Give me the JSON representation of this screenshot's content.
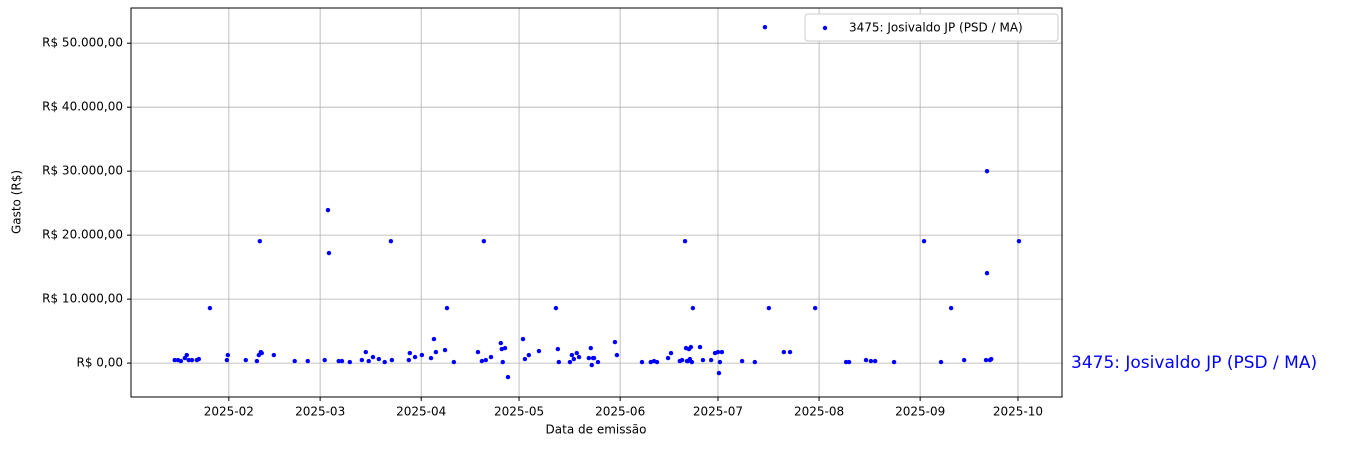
{
  "chart_data": {
    "type": "scatter",
    "xlabel": "Data de emissão",
    "ylabel": "Gasto (R$)",
    "x": [
      14.4,
      15.4,
      16.3,
      17.5,
      18.1,
      18.7,
      19.7,
      21.2,
      21.8,
      25.2,
      30.4,
      30.7,
      36.2,
      39.6,
      40.2,
      40.5,
      40.8,
      41.1,
      44.8,
      51.2,
      55.2,
      60.4,
      61.4,
      61.7,
      64.7,
      65.7,
      68.1,
      71.8,
      73.0,
      73.9,
      75.2,
      77.0,
      78.8,
      80.7,
      81.0,
      86.2,
      86.5,
      88.1,
      90.2,
      93.0,
      93.9,
      94.5,
      97.3,
      97.9,
      100.0,
      107.4,
      108.6,
      109.2,
      109.8,
      111.4,
      114.4,
      114.7,
      115.0,
      115.7,
      116.6,
      121.2,
      121.8,
      123.0,
      126.1,
      131.3,
      131.9,
      132.2,
      135.6,
      136.2,
      136.8,
      137.7,
      138.4,
      141.4,
      142.0,
      142.3,
      142.7,
      143.0,
      144.2,
      149.4,
      150.0,
      157.7,
      160.4,
      161.4,
      162.3,
      165.7,
      166.6,
      169.3,
      170.0,
      170.9,
      171.2,
      171.5,
      171.8,
      172.1,
      172.4,
      172.7,
      173.0,
      173.3,
      175.5,
      176.4,
      178.9,
      180.1,
      181.0,
      181.3,
      181.6,
      182.2,
      188.4,
      192.3,
      195.4,
      196.6,
      201.2,
      203.1,
      210.8,
      220.3,
      221.2,
      226.4,
      227.9,
      229.2,
      235.0,
      244.2,
      249.4,
      252.5,
      256.5,
      263.2,
      263.5,
      263.5,
      264.4,
      264.8,
      273.3
    ],
    "series": [
      {
        "name": "3475: Josivaldo JP (PSD / MA)",
        "color": "blue",
        "values": [
          470,
          470,
          310,
          780,
          1250,
          470,
          470,
          470,
          630,
          8590,
          470,
          1250,
          470,
          310,
          1250,
          19060,
          1720,
          1560,
          1250,
          310,
          310,
          470,
          23910,
          17190,
          310,
          310,
          160,
          470,
          1720,
          310,
          940,
          630,
          160,
          19060,
          470,
          470,
          1560,
          940,
          1250,
          780,
          3750,
          1720,
          2030,
          8590,
          160,
          1720,
          310,
          19060,
          470,
          940,
          3130,
          2190,
          160,
          2340,
          -2190,
          3750,
          630,
          1250,
          1880,
          8590,
          2190,
          160,
          160,
          1250,
          630,
          1560,
          940,
          780,
          2340,
          -310,
          780,
          780,
          160,
          3280,
          1250,
          160,
          160,
          310,
          160,
          780,
          1560,
          310,
          470,
          19060,
          2340,
          310,
          310,
          2190,
          630,
          2500,
          160,
          8590,
          2500,
          470,
          470,
          1560,
          1720,
          -1560,
          160,
          1720,
          310,
          160,
          52500,
          8590,
          1720,
          1720,
          8590,
          160,
          160,
          470,
          310,
          310,
          160,
          19060,
          160,
          8590,
          470,
          470,
          30000,
          14060,
          470,
          630,
          19060
        ]
      }
    ],
    "xlim": [
      1.0,
      286.5
    ],
    "xticks": [
      {
        "value": 31,
        "label": "2025-02"
      },
      {
        "value": 59,
        "label": "2025-03"
      },
      {
        "value": 90,
        "label": "2025-04"
      },
      {
        "value": 120,
        "label": "2025-05"
      },
      {
        "value": 151,
        "label": "2025-06"
      },
      {
        "value": 181,
        "label": "2025-07"
      },
      {
        "value": 212,
        "label": "2025-08"
      },
      {
        "value": 243,
        "label": "2025-09"
      },
      {
        "value": 273,
        "label": "2025-10"
      }
    ],
    "ylim": [
      -5300,
      55500
    ],
    "yticks": [
      {
        "value": 0,
        "label": "R$ 0,00"
      },
      {
        "value": 10000,
        "label": "R$ 10.000,00"
      },
      {
        "value": 20000,
        "label": "R$ 20.000,00"
      },
      {
        "value": 30000,
        "label": "R$ 30.000,00"
      },
      {
        "value": 40000,
        "label": "R$ 40.000,00"
      },
      {
        "value": 50000,
        "label": "R$ 50.000,00"
      }
    ],
    "grid": true,
    "legend": "upper right"
  }
}
